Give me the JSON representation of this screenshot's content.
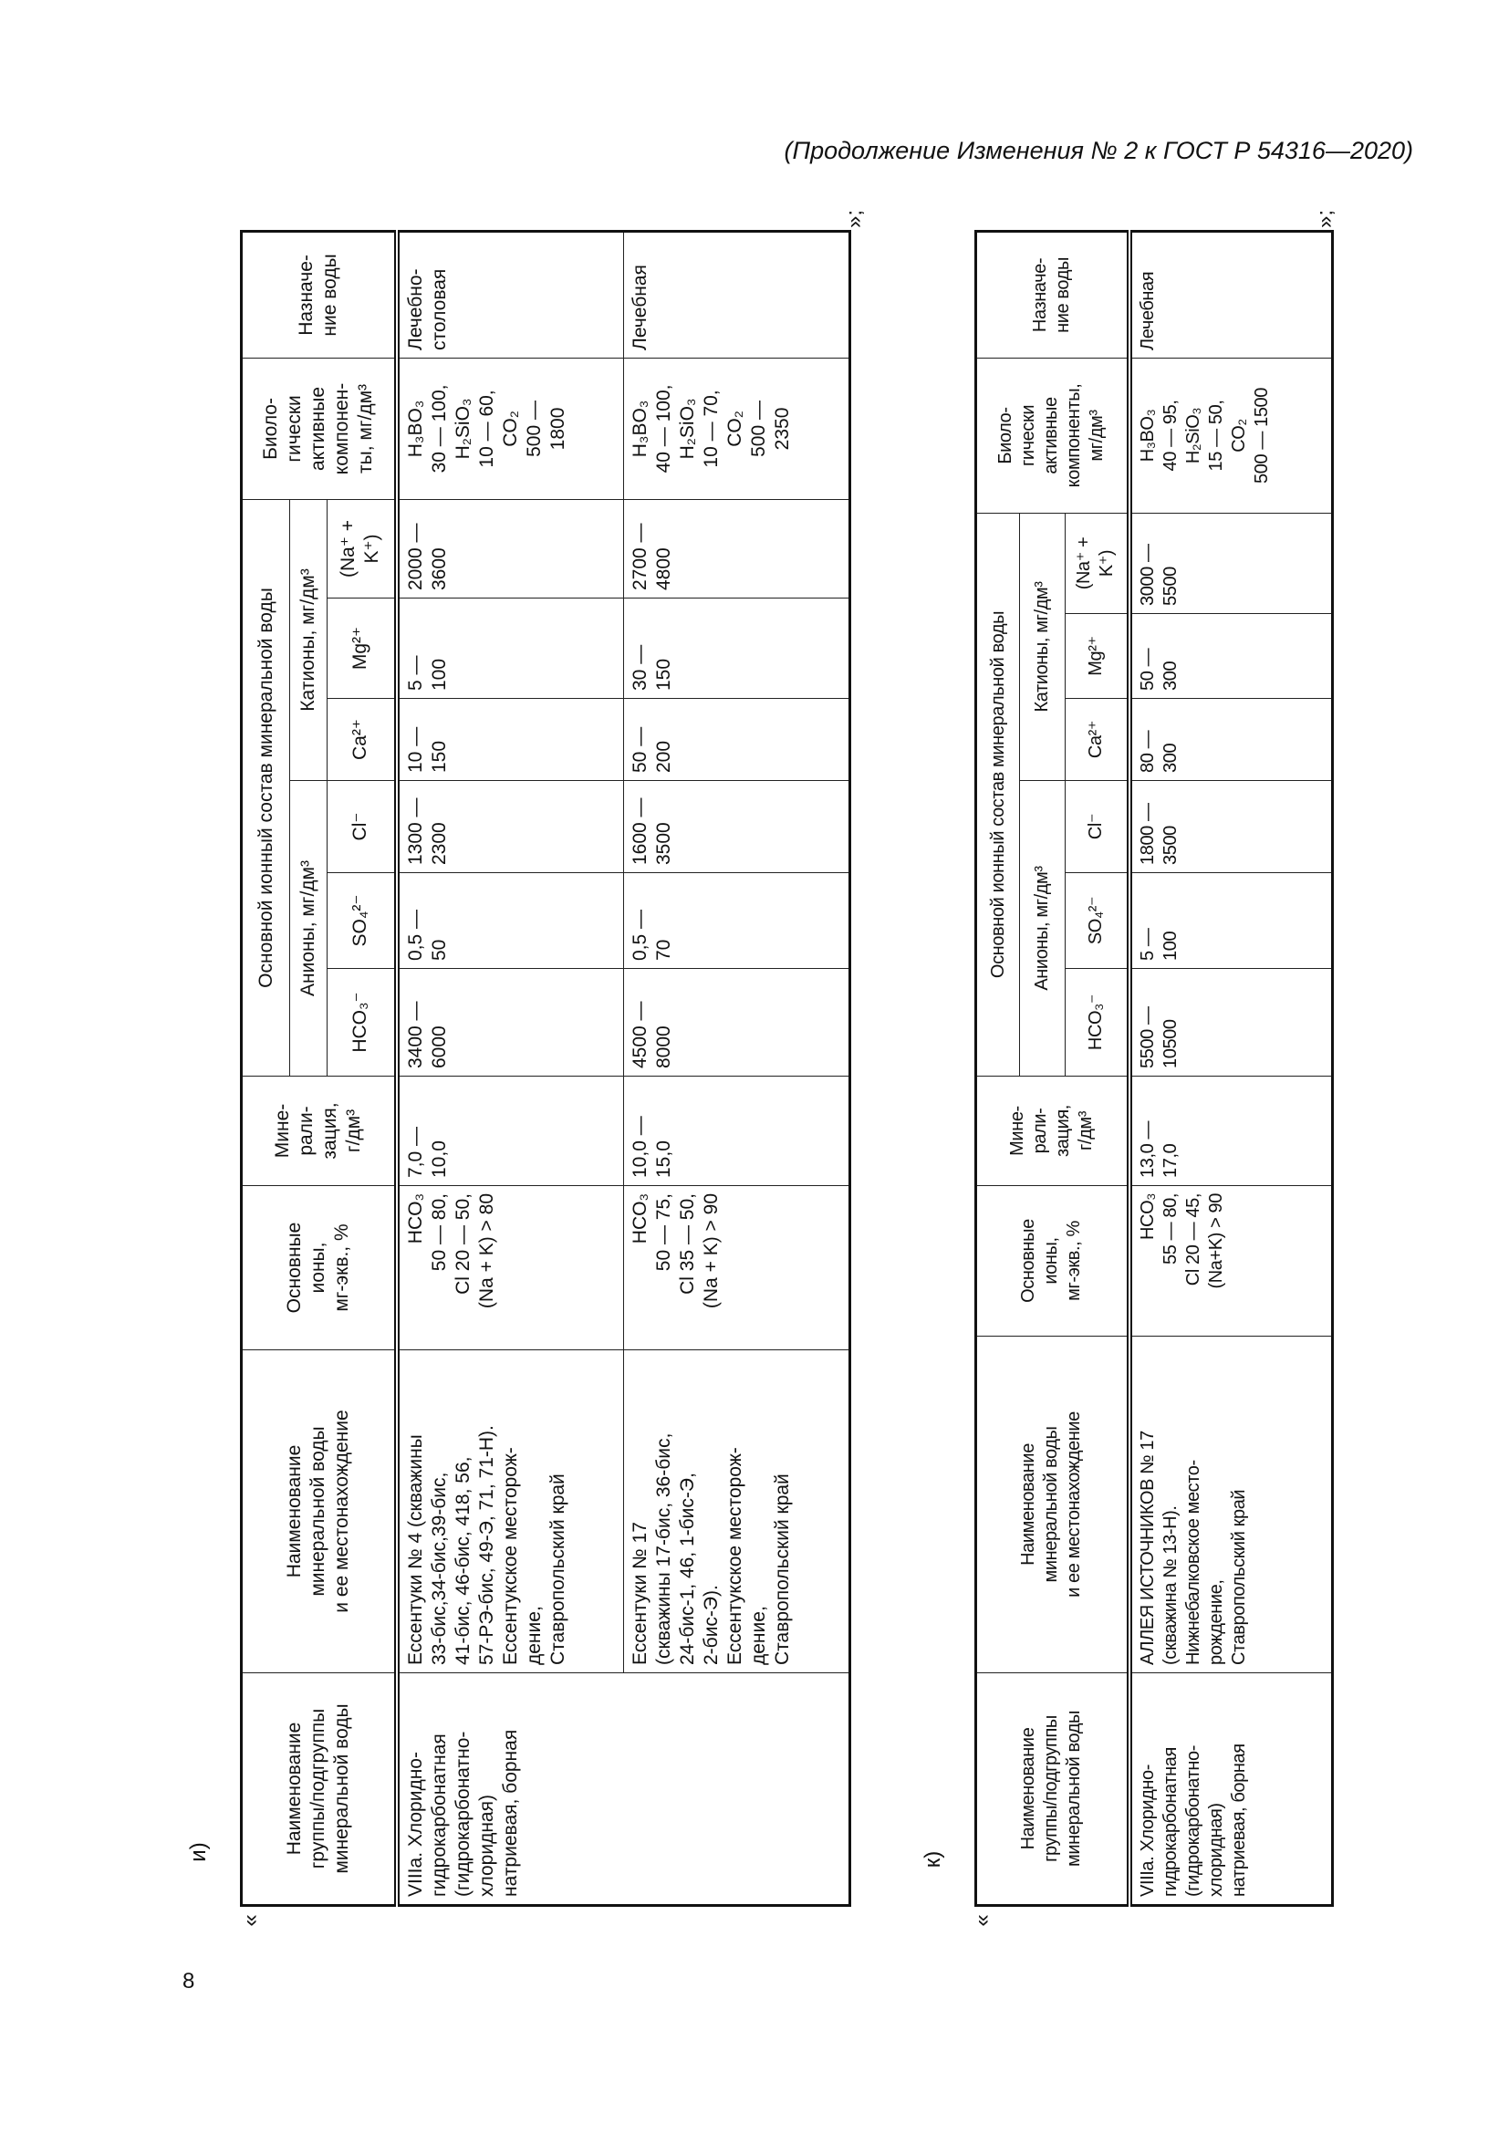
{
  "header_note": "(Продолжение Изменения № 2 к ГОСТ Р 54316—2020)",
  "page_number": "8",
  "tables": [
    {
      "label": "и)",
      "open_quote": "«",
      "close_quote": "»;",
      "headers": {
        "group": "Наименование\nгруппы/подгруппы\nминеральной воды",
        "name": "Наименование\nминеральной воды\nи ее местонахождение",
        "ions": "Основные\nионы,\nмг-экв., %",
        "mineral": "Мине-\nрали-\nзация,\nг/дм³",
        "ionic": "Основной ионный состав минеральной воды",
        "anions": "Анионы, мг/дм³",
        "cations": "Катионы, мг/дм³",
        "hco3": "HCO₃⁻",
        "so4": "SO₄²⁻",
        "cl": "Cl⁻",
        "ca": "Ca²⁺",
        "mg": "Mg²⁺",
        "nak": "(Na⁺ +\nK⁺)",
        "bio": "Биоло-\nгически\nактивные\nкомпонен-\nты, мг/дм³",
        "purpose": "Назначе-\nние воды"
      },
      "group": "VIIIa. Хлоридно-\nгидрокарбонатная\n(гидрокарбонатно-\nхлоридная)\nнатриевая, борная",
      "rows": [
        {
          "name": "Ессентуки № 4 (скважины\n33-бис,34-бис,39-бис,\n41-бис, 46-бис, 418, 56,\n57-РЭ-бис, 49-Э, 71, 71-Н).\nЕссентукское месторож-\nдение,\nСтавропольский край",
          "ions": "HCO₃\n50 — 80,\nCl 20 — 50,\n(Na + K) > 80",
          "mineral": "7,0 —\n10,0",
          "hco3": "3400 —\n6000",
          "so4": "0,5 —\n50",
          "cl": "1300 —\n2300",
          "ca": "10 —\n150",
          "mg": "5 —\n100",
          "nak": "2000 —\n3600",
          "bio": "H₃BO₃\n30 — 100,\nH₂SiO₃\n10 — 60,\nCO₂\n500 —\n1800",
          "purpose": "Лечебно-\nстоловая"
        },
        {
          "name": "Ессентуки № 17\n(скважины 17-бис, 36-бис,\n24-бис-1, 46, 1-бис-Э,\n2-бис-Э).\nЕссентукское месторож-\nдение,\nСтавропольский край",
          "ions": "HCO₃\n50 — 75,\nCl 35 — 50,\n(Na + K) > 90",
          "mineral": "10,0 —\n15,0",
          "hco3": "4500 —\n8000",
          "so4": "0,5 —\n70",
          "cl": "1600 —\n3500",
          "ca": "50 —\n200",
          "mg": "30 —\n150",
          "nak": "2700 —\n4800",
          "bio": "H₃BO₃\n40 — 100,\nH₂SiO₃\n10 — 70,\nCO₂\n500 —\n2350",
          "purpose": "Лечебная"
        }
      ]
    },
    {
      "label": "к)",
      "open_quote": "«",
      "close_quote": "»;",
      "headers": {
        "group": "Наименование\nгруппы/подгруппы\nминеральной воды",
        "name": "Наименование\nминеральной воды\nи ее местонахождение",
        "ions": "Основные\nионы,\nмг-экв., %",
        "mineral": "Мине-\nрали-\nзация,\nг/дм³",
        "ionic": "Основной ионный состав минеральной воды",
        "anions": "Анионы, мг/дм³",
        "cations": "Катионы, мг/дм³",
        "hco3": "HCO₃⁻",
        "so4": "SO₄²⁻",
        "cl": "Cl⁻",
        "ca": "Ca²⁺",
        "mg": "Mg²⁺",
        "nak": "(Na⁺ +\nK⁺)",
        "bio": "Биоло-\nгически\nактивные\nкомпоненты,\nмг/дм³",
        "purpose": "Назначе-\nние воды"
      },
      "group": "VIIIa. Хлоридно-\nгидрокарбонатная\n(гидрокарбонатно-\nхлоридная)\nнатриевая, борная",
      "rows": [
        {
          "name": "АЛЛЕЯ ИСТОЧНИКОВ № 17\n(скважина № 13-Н).\nНижнебалковское место-\nрождение,\nСтавропольский край",
          "ions": "HCO₃\n55 — 80,\nCl 20 — 45,\n(Na+K) > 90",
          "mineral": "13,0 —\n17,0",
          "hco3": "5500 —\n10500",
          "so4": "5 —\n100",
          "cl": "1800 —\n3500",
          "ca": "80 —\n300",
          "mg": "50 —\n300",
          "nak": "3000 —\n5500",
          "bio": "H₃BO₃\n40 — 95,\nH₂SiO₃\n15 — 50,\nCO₂\n500 — 1500",
          "purpose": "Лечебная"
        }
      ]
    }
  ]
}
